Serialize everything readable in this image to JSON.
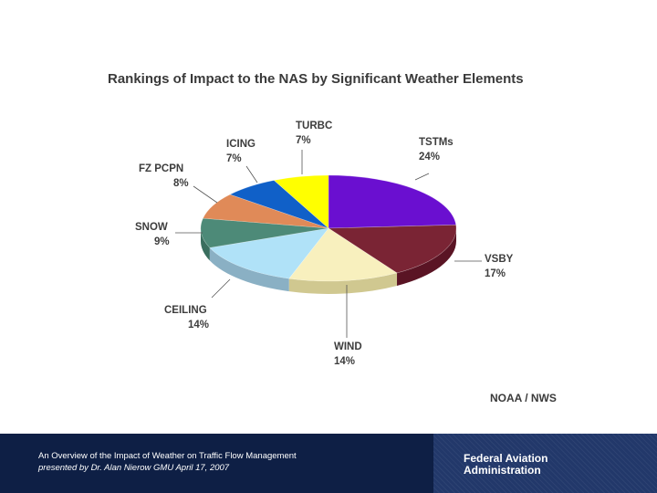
{
  "chart_data": {
    "type": "pie",
    "title": "Rankings of Impact to the NAS by Significant Weather Elements",
    "slices": [
      {
        "label": "TSTMs",
        "value": 24,
        "value_label": "24%",
        "color": "#6a0fd0",
        "side_color": "#40087e"
      },
      {
        "label": "VSBY",
        "value": 17,
        "value_label": "17%",
        "color": "#7a2434",
        "side_color": "#5a1424"
      },
      {
        "label": "WIND",
        "value": 14,
        "value_label": "14%",
        "color": "#f8f0be",
        "side_color": "#d0c890"
      },
      {
        "label": "CEILING",
        "value": 14,
        "value_label": "14%",
        "color": "#b0e2f8",
        "side_color": "#8ab0c4"
      },
      {
        "label": "SNOW",
        "value": 9,
        "value_label": "9%",
        "color": "#4d8a78",
        "side_color": "#3a6e5e"
      },
      {
        "label": "FZ PCPN",
        "value": 8,
        "value_label": "8%",
        "color": "#e08a58",
        "side_color": "#b86a40"
      },
      {
        "label": "ICING",
        "value": 7,
        "value_label": "7%",
        "color": "#1060c8",
        "side_color": "#0a4694"
      },
      {
        "label": "TURBC",
        "value": 7,
        "value_label": "7%",
        "color": "#ffff00",
        "side_color": "#c8c800"
      }
    ]
  },
  "source_label": "NOAA / NWS",
  "footer": {
    "line1": "An Overview of the Impact of Weather on Traffic Flow Management",
    "line2": "presented by Dr. Alan Nierow GMU April 17, 2007",
    "agency_line1": "Federal Aviation",
    "agency_line2": "Administration"
  }
}
